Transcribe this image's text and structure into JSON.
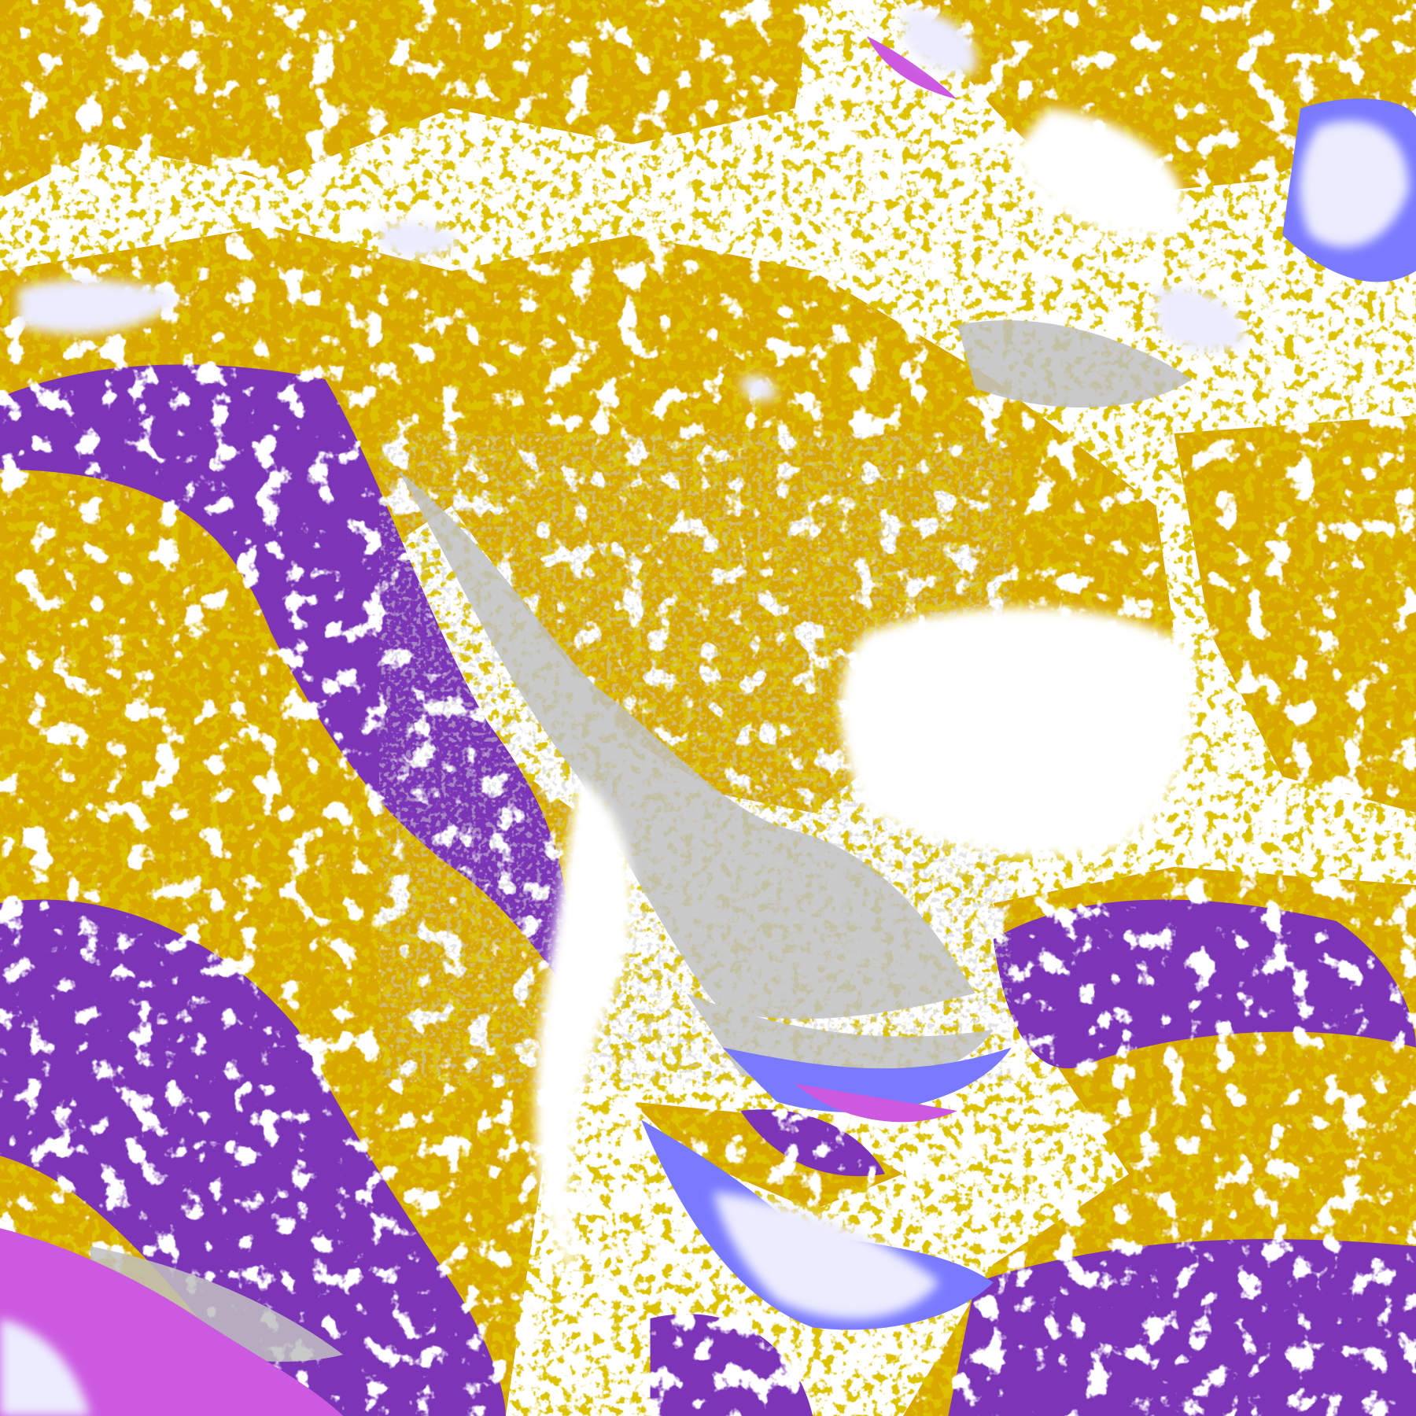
{
  "image": {
    "kind": "false-color satellite cloud classification",
    "palette": {
      "clear": "#ffffff",
      "gold": "#d9a800",
      "dark_gold": "#b88a00",
      "purple": "#7d35b8",
      "magenta": "#cc5ae0",
      "periwinkle": "#7a7aff",
      "lavender": "#ececff",
      "light_lavender": "#c8c8ff",
      "gray": "#9a9a9a",
      "light_gray": "#c0c0c0"
    }
  }
}
